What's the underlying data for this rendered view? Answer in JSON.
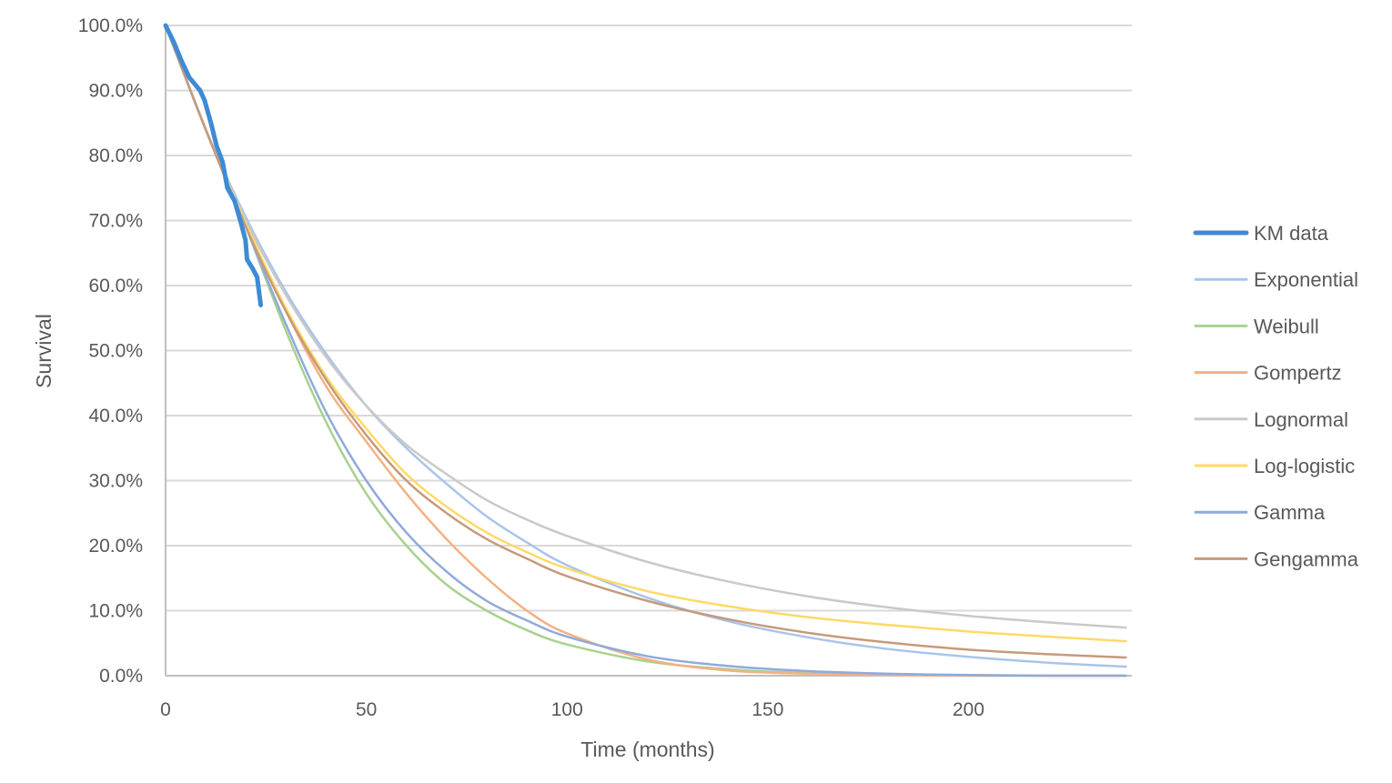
{
  "chart_data": {
    "type": "line",
    "title": "",
    "xlabel": "Time (months)",
    "ylabel": "Survival",
    "xlim": [
      0,
      240
    ],
    "ylim": [
      0,
      100
    ],
    "x_ticks": [
      0,
      50,
      100,
      150,
      200
    ],
    "y_ticks": [
      "0.0%",
      "10.0%",
      "20.0%",
      "30.0%",
      "40.0%",
      "50.0%",
      "60.0%",
      "70.0%",
      "80.0%",
      "90.0%",
      "100.0%"
    ],
    "y_tick_values": [
      0,
      10,
      20,
      30,
      40,
      50,
      60,
      70,
      80,
      90,
      100
    ],
    "grid": true,
    "legend_position": "right",
    "x": [
      0,
      10,
      20,
      30,
      40,
      50,
      60,
      70,
      80,
      90,
      100,
      120,
      140,
      160,
      180,
      200,
      220,
      240
    ],
    "series": [
      {
        "name": "KM data",
        "color": "#3d8bd4",
        "width": 5,
        "x": [
          0,
          2,
          4,
          5.9,
          8.6,
          9.7,
          11.3,
          12.7,
          14.2,
          15.4,
          17.2,
          18.8,
          19.9,
          20.3,
          21.7,
          22.8,
          23.7
        ],
        "values": [
          100,
          97.5,
          94.5,
          92,
          90,
          88.5,
          85,
          81.5,
          79,
          75,
          73,
          69.6,
          67,
          64,
          62.6,
          61.3,
          57
        ]
      },
      {
        "name": "Exponential",
        "color": "#a9c4eb",
        "width": 2.5,
        "values": [
          100,
          84,
          70.5,
          59,
          49.5,
          41.5,
          35,
          29.5,
          24.5,
          20.5,
          17,
          12,
          8.4,
          5.9,
          4.1,
          2.9,
          2.0,
          1.4
        ]
      },
      {
        "name": "Weibull",
        "color": "#a9d18e",
        "width": 2.5,
        "values": [
          100,
          84,
          69,
          53,
          39,
          28,
          20,
          14,
          10,
          7,
          4.8,
          2.2,
          1.0,
          0.4,
          0.2,
          0.1,
          0,
          0
        ]
      },
      {
        "name": "Gompertz",
        "color": "#f4b183",
        "width": 2.5,
        "values": [
          100,
          84,
          69,
          56,
          44.5,
          36,
          28,
          21,
          15,
          10,
          6.5,
          2.5,
          0.8,
          0.3,
          0.1,
          0,
          0,
          0
        ]
      },
      {
        "name": "Lognormal",
        "color": "#c9c9c9",
        "width": 2.5,
        "values": [
          100,
          84,
          70,
          58.5,
          49,
          41.5,
          35.5,
          31,
          27,
          24,
          21.5,
          17.5,
          14.5,
          12.2,
          10.5,
          9.2,
          8.2,
          7.4
        ]
      },
      {
        "name": "Log-logistic",
        "color": "#ffd966",
        "width": 2.5,
        "values": [
          100,
          84,
          69.5,
          56.5,
          46,
          38,
          31,
          26,
          22,
          19,
          16.5,
          13,
          10.7,
          9,
          7.8,
          6.8,
          6.0,
          5.3
        ]
      },
      {
        "name": "Gamma",
        "color": "#8faadc",
        "width": 2.5,
        "values": [
          100,
          84,
          69,
          54,
          40.5,
          30,
          22,
          16,
          11.5,
          8.5,
          6,
          3,
          1.5,
          0.7,
          0.3,
          0.1,
          0,
          0
        ]
      },
      {
        "name": "Gengamma",
        "color": "#c59a7c",
        "width": 2.5,
        "values": [
          100,
          84,
          69,
          56,
          45.5,
          37,
          30,
          25,
          21,
          18,
          15.3,
          11.5,
          8.7,
          6.6,
          5.1,
          4.0,
          3.3,
          2.8
        ]
      }
    ]
  },
  "axes": {
    "x_title": "Time (months)",
    "y_title": "Survival"
  },
  "legend": {
    "items": [
      {
        "label": "KM data",
        "color": "#3d8bd4"
      },
      {
        "label": "Exponential",
        "color": "#a9c4eb"
      },
      {
        "label": "Weibull",
        "color": "#a9d18e"
      },
      {
        "label": "Gompertz",
        "color": "#f4b183"
      },
      {
        "label": "Lognormal",
        "color": "#c9c9c9"
      },
      {
        "label": "Log-logistic",
        "color": "#ffd966"
      },
      {
        "label": "Gamma",
        "color": "#8faadc"
      },
      {
        "label": "Gengamma",
        "color": "#c59a7c"
      }
    ]
  }
}
